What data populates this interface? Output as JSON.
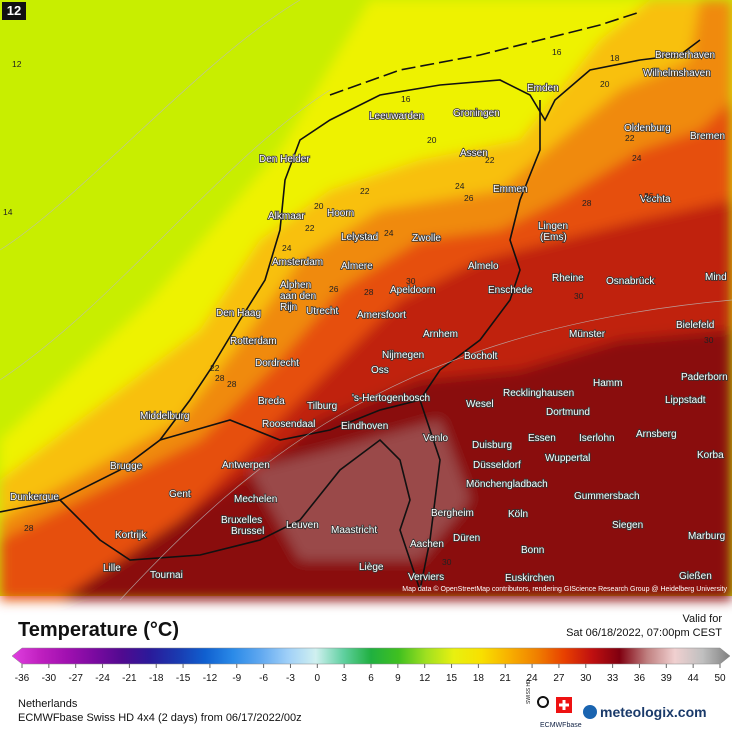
{
  "frame_label": "12",
  "cities": [
    "Bremerhaven",
    "Wilhelmshaven",
    "Emden",
    "Bremen",
    "Oldenburg",
    "Leeuwarden",
    "Groningen",
    "Den Helder",
    "Assen",
    "Emmen",
    "Vechta",
    "Alkmaar",
    "Hoorn",
    "Lelystad",
    "Zwolle",
    "Lingen",
    "(Ems)",
    "Amsterdam",
    "Almere",
    "Almelo",
    "Rheine",
    "Mind",
    "Osnabrück",
    "Alphen",
    "aan den",
    "Rijn",
    "Enschede",
    "Apeldoorn",
    "Amersfoort",
    "Den Haag",
    "Utrecht",
    "Bielefeld",
    "Arnhem",
    "Münster",
    "Rotterdam",
    "Nijmegen",
    "Bocholt",
    "Dordrecht",
    "Oss",
    "Hamm",
    "Recklinghausen",
    "Paderborn",
    "Middelburg",
    "Breda",
    "Tilburg",
    "'s-Hertogenbosch",
    "Wesel",
    "Dortmund",
    "Lippstadt",
    "Roosendaal",
    "Eindhoven",
    "Venlo",
    "Duisburg",
    "Essen",
    "Iserlohn",
    "Arnsberg",
    "Brugge",
    "Antwerpen",
    "Wuppertal",
    "Korba",
    "Düsseldorf",
    "Mönchengladbach",
    "Dunkerque",
    "Gent",
    "Mechelen",
    "Gummersbach",
    "Bruxelles",
    "Brussel",
    "Leuven",
    "Maastricht",
    "Bergheim",
    "Köln",
    "Siegen",
    "Kortrijk",
    "Düren",
    "Aachen",
    "Bonn",
    "Marburg",
    "Lille",
    "Tournai",
    "Liège",
    "Verviers",
    "Euskirchen",
    "Gießen"
  ],
  "contour_labels": [
    12,
    14,
    16,
    18,
    16,
    20,
    20,
    22,
    22,
    24,
    24,
    26,
    22,
    20,
    22,
    24,
    24,
    28,
    26,
    30,
    26,
    28,
    22,
    28,
    28,
    30,
    30,
    28,
    30
  ],
  "attribution": "Map data © OpenStreetMap contributors, rendering GIScience Research Group @ Heidelberg University",
  "title": "Temperature (°C)",
  "valid_label": "Valid for",
  "valid_time": "Sat 06/18/2022, 07:00pm CEST",
  "legend": {
    "ticks": [
      -36,
      -30,
      -27,
      -24,
      -21,
      -18,
      -15,
      -12,
      -9,
      -6,
      -3,
      0,
      3,
      6,
      9,
      12,
      15,
      18,
      21,
      24,
      27,
      30,
      33,
      36,
      39,
      44,
      50
    ],
    "colors": [
      "#e040e0",
      "#c020c0",
      "#a010b0",
      "#7a0aa0",
      "#500a90",
      "#2a1a9a",
      "#1a3ab0",
      "#1060d0",
      "#2a8ae8",
      "#60a8f0",
      "#a0d0f8",
      "#d0f0f0",
      "#60d0a0",
      "#20b040",
      "#40c020",
      "#a0e020",
      "#e8f010",
      "#f8e000",
      "#f8b000",
      "#f08000",
      "#e84000",
      "#c01010",
      "#800010",
      "#c08080",
      "#f0d0d0",
      "#c0c0c0",
      "#808080"
    ]
  },
  "region": "Netherlands",
  "model": "ECMWFbase Swiss HD 4x4 (2 days) from 06/17/2022/00z",
  "logo_small": "SWISS HD",
  "logo_ecmwf": "ECMWFbase",
  "brand": "meteologix.com"
}
